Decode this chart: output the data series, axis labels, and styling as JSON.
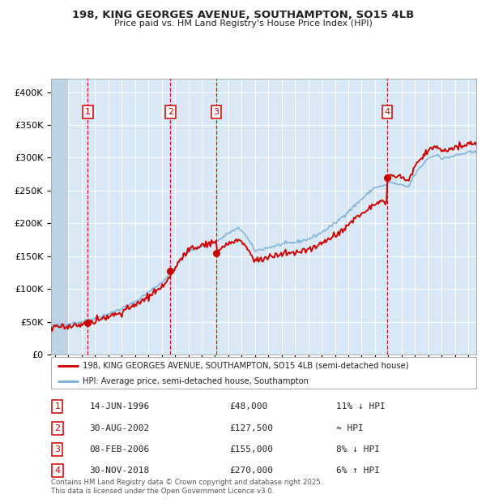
{
  "title_line1": "198, KING GEORGES AVENUE, SOUTHAMPTON, SO15 4LB",
  "title_line2": "Price paid vs. HM Land Registry's House Price Index (HPI)",
  "xlim_start": 1993.7,
  "xlim_end": 2025.6,
  "ylim_min": 0,
  "ylim_max": 420000,
  "yticks": [
    0,
    50000,
    100000,
    150000,
    200000,
    250000,
    300000,
    350000,
    400000
  ],
  "ytick_labels": [
    "£0",
    "£50K",
    "£100K",
    "£150K",
    "£200K",
    "£250K",
    "£300K",
    "£350K",
    "£400K"
  ],
  "background_color": "#d9e8f5",
  "hatch_color": "#b8cfe0",
  "red_line_color": "#cc0000",
  "blue_line_color": "#7aadd4",
  "grid_color": "#ffffff",
  "sale_points": [
    {
      "year": 1996.45,
      "price": 48000,
      "label": "1"
    },
    {
      "year": 2002.66,
      "price": 127500,
      "label": "2"
    },
    {
      "year": 2006.1,
      "price": 155000,
      "label": "3"
    },
    {
      "year": 2018.92,
      "price": 270000,
      "label": "4"
    }
  ],
  "vline_color": "#cc0000",
  "legend_line1": "198, KING GEORGES AVENUE, SOUTHAMPTON, SO15 4LB (semi-detached house)",
  "legend_line2": "HPI: Average price, semi-detached house, Southampton",
  "table_rows": [
    {
      "num": "1",
      "date": "14-JUN-1996",
      "price": "£48,000",
      "change": "11% ↓ HPI"
    },
    {
      "num": "2",
      "date": "30-AUG-2002",
      "price": "£127,500",
      "change": "≈ HPI"
    },
    {
      "num": "3",
      "date": "08-FEB-2006",
      "price": "£155,000",
      "change": "8% ↓ HPI"
    },
    {
      "num": "4",
      "date": "30-NOV-2018",
      "price": "£270,000",
      "change": "6% ↑ HPI"
    }
  ],
  "footer": "Contains HM Land Registry data © Crown copyright and database right 2025.\nThis data is licensed under the Open Government Licence v3.0."
}
